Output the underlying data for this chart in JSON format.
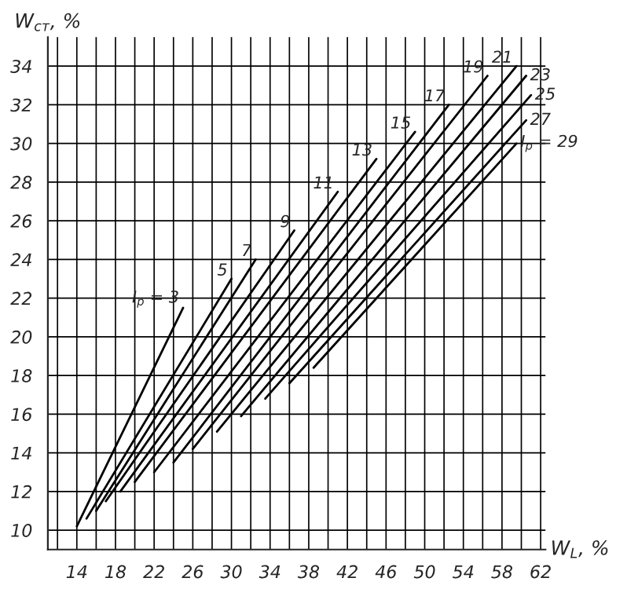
{
  "chart_data": {
    "type": "line",
    "xlabel": "W$_{L}$, %",
    "ylabel": "W$_{ст}$, %",
    "xlim": [
      11,
      62.5
    ],
    "ylim": [
      9,
      35.5
    ],
    "xticks": [
      {
        "value": 12,
        "label": null
      },
      14,
      {
        "value": 16,
        "label": null
      },
      18,
      {
        "value": 20,
        "label": null
      },
      22,
      {
        "value": 24,
        "label": null
      },
      26,
      {
        "value": 28,
        "label": null
      },
      30,
      {
        "value": 32,
        "label": null
      },
      34,
      {
        "value": 36,
        "label": null
      },
      38,
      {
        "value": 40,
        "label": null
      },
      42,
      {
        "value": 44,
        "label": null
      },
      46,
      {
        "value": 48,
        "label": null
      },
      50,
      {
        "value": 52,
        "label": null
      },
      54,
      {
        "value": 56,
        "label": null
      },
      58,
      {
        "value": 60,
        "label": null
      },
      62
    ],
    "yticks": [
      10,
      12,
      14,
      16,
      18,
      20,
      22,
      24,
      26,
      28,
      30,
      32,
      34
    ],
    "grid": true,
    "legend": false,
    "marker": "none",
    "line_style": "solid",
    "series": [
      {
        "name": "I$_{p}$ = 3",
        "color": "#000000",
        "x": [
          14,
          25
        ],
        "values": [
          10.2,
          21.5
        ]
      },
      {
        "name": "5",
        "color": "#000000",
        "x": [
          15,
          30
        ],
        "values": [
          10.6,
          23
        ]
      },
      {
        "name": "7",
        "color": "#000000",
        "x": [
          16,
          32.5
        ],
        "values": [
          11,
          24
        ]
      },
      {
        "name": "9",
        "color": "#000000",
        "x": [
          17,
          36.5
        ],
        "values": [
          11.5,
          25.5
        ]
      },
      {
        "name": "11",
        "color": "#000000",
        "x": [
          18.5,
          41
        ],
        "values": [
          12,
          27.5
        ]
      },
      {
        "name": "13",
        "color": "#000000",
        "x": [
          20,
          45
        ],
        "values": [
          12.5,
          29.2
        ]
      },
      {
        "name": "15",
        "color": "#000000",
        "x": [
          22,
          49
        ],
        "values": [
          13,
          30.6
        ]
      },
      {
        "name": "17",
        "color": "#000000",
        "x": [
          24,
          52.5
        ],
        "values": [
          13.5,
          32
        ]
      },
      {
        "name": "19",
        "color": "#000000",
        "x": [
          26,
          56.5
        ],
        "values": [
          14.2,
          33.5
        ]
      },
      {
        "name": "21",
        "color": "#000000",
        "x": [
          28.5,
          59.5
        ],
        "values": [
          15.1,
          34
        ]
      },
      {
        "name": "23",
        "color": "#000000",
        "x": [
          31,
          60.5
        ],
        "values": [
          15.9,
          33.5
        ]
      },
      {
        "name": "25",
        "color": "#000000",
        "x": [
          33.5,
          61
        ],
        "values": [
          16.8,
          32.5
        ]
      },
      {
        "name": "27",
        "color": "#000000",
        "x": [
          36,
          60.5
        ],
        "values": [
          17.6,
          31.2
        ]
      },
      {
        "name": "I$_{p}$ = 29",
        "color": "#000000",
        "x": [
          38.5,
          59.5
        ],
        "values": [
          18.4,
          30
        ]
      }
    ]
  }
}
